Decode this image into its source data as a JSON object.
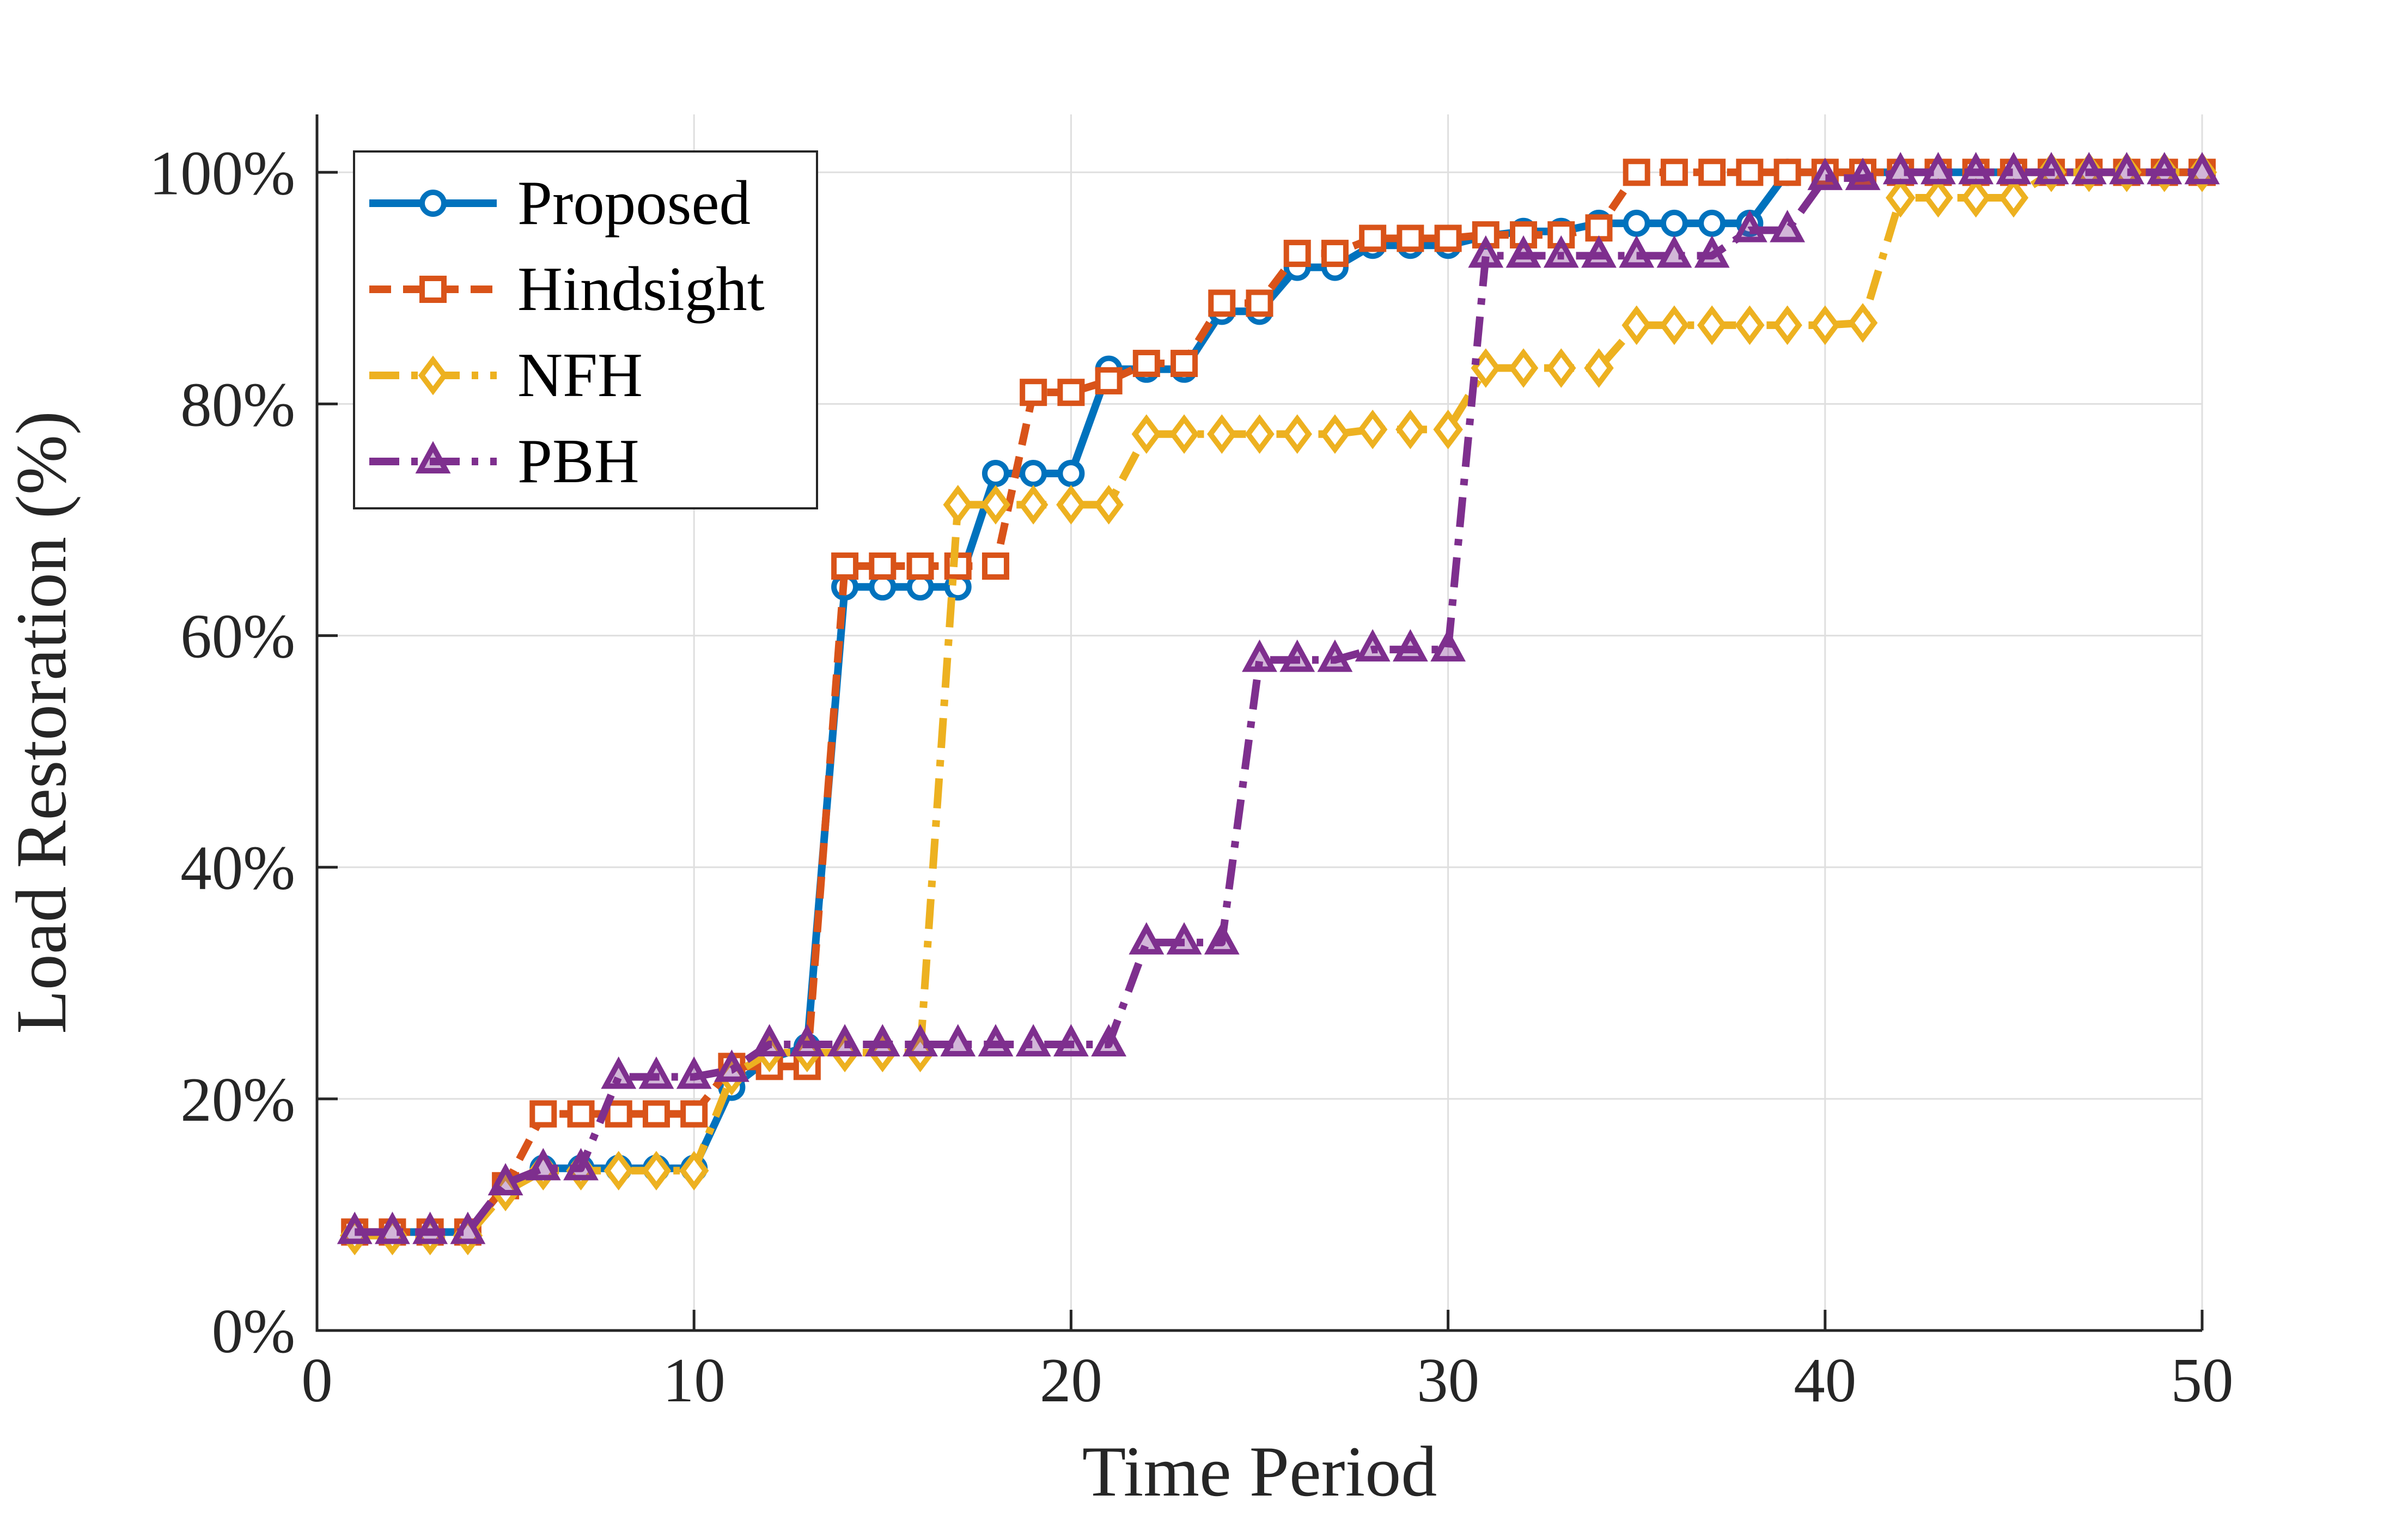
{
  "chart_data": {
    "type": "line",
    "title": "",
    "xlabel": "Time Period",
    "ylabel": "Load Restoration (%)",
    "xlim": [
      0,
      50
    ],
    "ylim": [
      0,
      105
    ],
    "xticks": [
      0,
      10,
      20,
      30,
      40,
      50
    ],
    "xtick_labels": [
      "0",
      "10",
      "20",
      "30",
      "40",
      "50"
    ],
    "yticks": [
      0,
      20,
      40,
      60,
      80,
      100
    ],
    "ytick_labels": [
      "0%",
      "20%",
      "40%",
      "60%",
      "80%",
      "100%"
    ],
    "grid": true,
    "legend_position": "top-left",
    "x": [
      1,
      2,
      3,
      4,
      5,
      6,
      7,
      8,
      9,
      10,
      11,
      12,
      13,
      14,
      15,
      16,
      17,
      18,
      19,
      20,
      21,
      22,
      23,
      24,
      25,
      26,
      27,
      28,
      29,
      30,
      31,
      32,
      33,
      34,
      35,
      36,
      37,
      38,
      39,
      40,
      41,
      42,
      43,
      44,
      45,
      46,
      47,
      48,
      49,
      50
    ],
    "series": [
      {
        "name": "Proposed",
        "color": "#0072BD",
        "dash": "solid",
        "marker": "circle",
        "values": [
          8.5,
          8.5,
          8.5,
          8.5,
          12.5,
          14,
          14,
          14,
          14,
          14,
          21,
          23.5,
          24.5,
          64.2,
          64.2,
          64.2,
          64.2,
          74,
          74,
          74,
          83,
          83,
          83,
          88,
          88,
          91.8,
          91.8,
          93.7,
          93.7,
          93.7,
          94.5,
          94.9,
          94.9,
          95.6,
          95.6,
          95.6,
          95.6,
          95.6,
          100,
          100,
          100,
          100,
          100,
          100,
          100,
          100,
          100,
          100,
          100,
          100
        ]
      },
      {
        "name": "Hindsight",
        "color": "#D95319",
        "dash": "dash",
        "marker": "square",
        "values": [
          8.5,
          8.5,
          8.5,
          8.5,
          12.5,
          18.7,
          18.7,
          18.7,
          18.7,
          18.7,
          22.8,
          22.8,
          22.8,
          66,
          66,
          66,
          66,
          66,
          81,
          81,
          82,
          83.5,
          83.5,
          88.7,
          88.7,
          93,
          93,
          94.3,
          94.3,
          94.3,
          94.6,
          94.6,
          94.6,
          95.2,
          100,
          100,
          100,
          100,
          100,
          100,
          100,
          100,
          100,
          100,
          100,
          100,
          100,
          100,
          100,
          100
        ]
      },
      {
        "name": "NFH",
        "color": "#EDB120",
        "dash": "dashdot",
        "marker": "diamond",
        "values": [
          8.2,
          8.2,
          8.2,
          8.2,
          12,
          13.8,
          13.8,
          13.8,
          13.8,
          13.8,
          22,
          24,
          24,
          24,
          24,
          24,
          71.3,
          71.3,
          71.3,
          71.3,
          71.3,
          77.4,
          77.4,
          77.4,
          77.4,
          77.4,
          77.4,
          77.8,
          77.8,
          77.8,
          83.1,
          83.1,
          83.1,
          83.1,
          86.8,
          86.8,
          86.8,
          86.8,
          86.8,
          86.8,
          87,
          97.8,
          97.8,
          97.8,
          97.8,
          100,
          100,
          100,
          100,
          100
        ]
      },
      {
        "name": "PBH",
        "color": "#7E2F8E",
        "dash": "dashdot",
        "marker": "triangle",
        "values": [
          8.5,
          8.5,
          8.5,
          8.5,
          12.7,
          14,
          14,
          21.9,
          21.9,
          21.9,
          22.5,
          24.7,
          24.7,
          24.7,
          24.7,
          24.7,
          24.7,
          24.7,
          24.7,
          24.7,
          24.7,
          33.5,
          33.5,
          33.5,
          57.9,
          57.9,
          57.9,
          58.8,
          58.8,
          58.8,
          92.8,
          92.8,
          92.8,
          92.8,
          92.8,
          92.8,
          92.8,
          95,
          95,
          99.5,
          99.5,
          100,
          100,
          100,
          100,
          100,
          100,
          100,
          100,
          100
        ]
      }
    ]
  }
}
